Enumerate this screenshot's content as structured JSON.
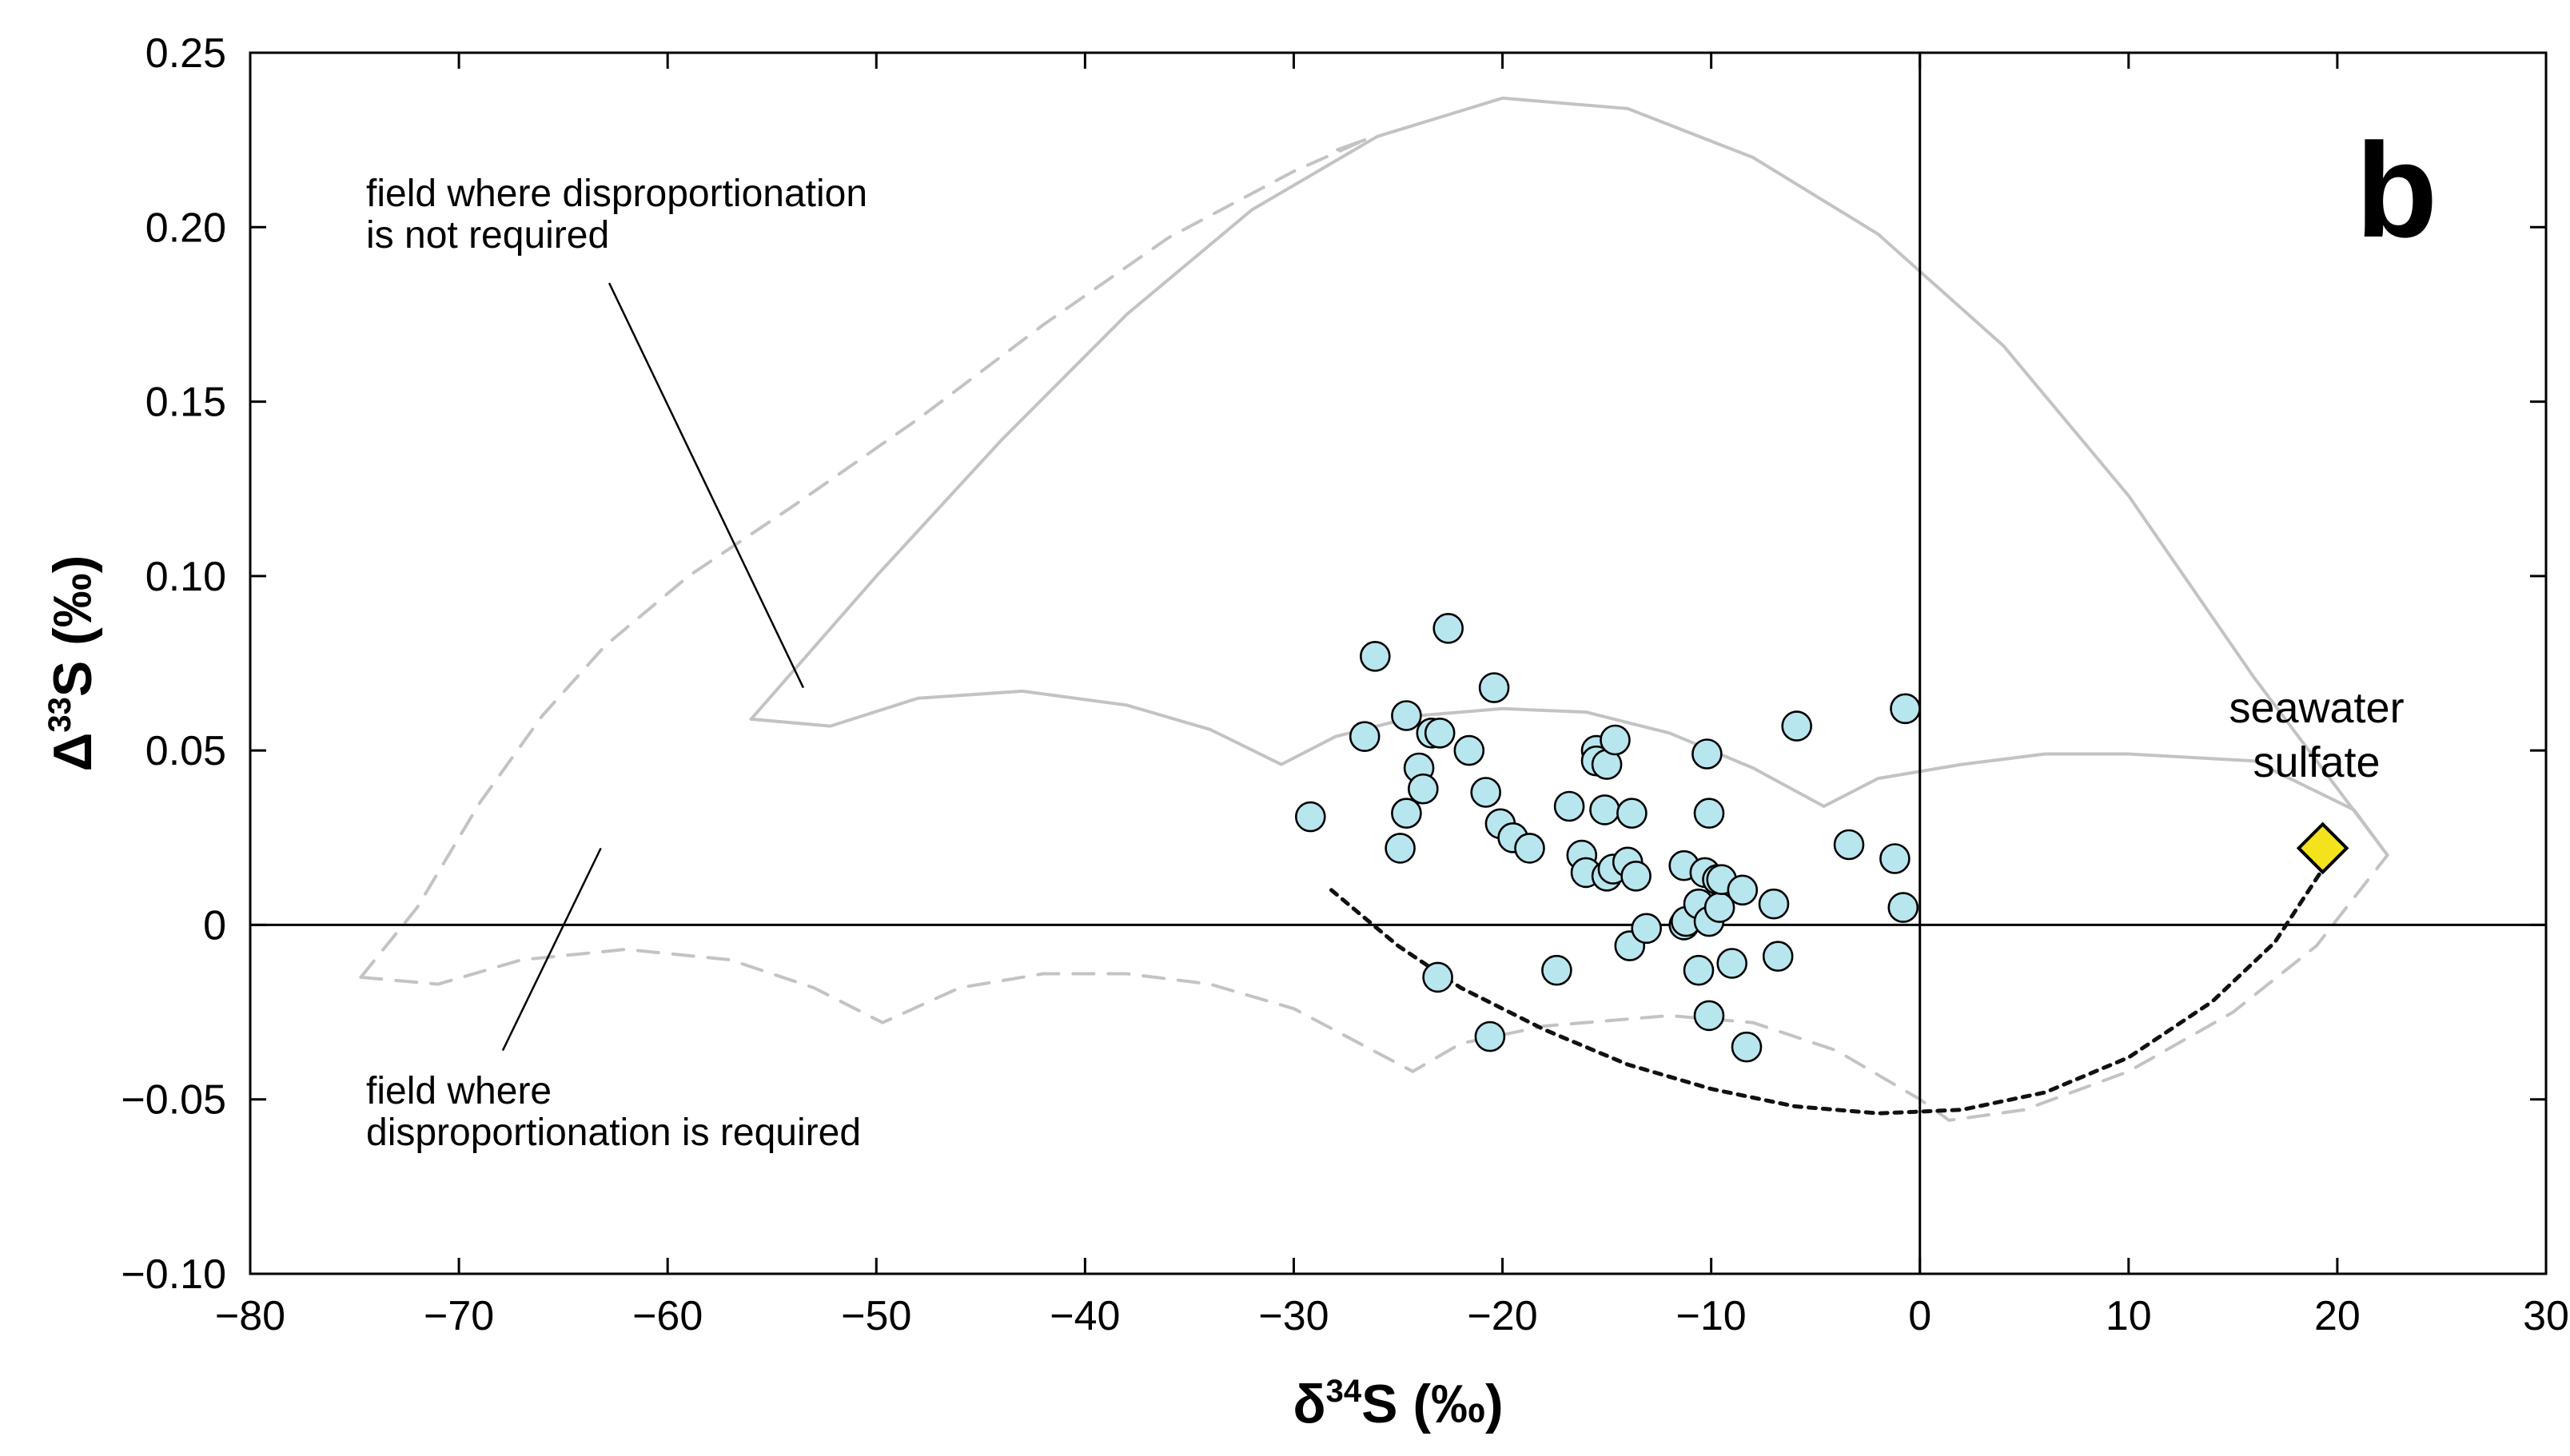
{
  "chart_data": {
    "type": "scatter",
    "panel_label": "b",
    "xlabel": {
      "main": "δ",
      "sup": "34",
      "rest": "S (‰)"
    },
    "ylabel": {
      "main": "Δ",
      "sup": "33",
      "rest": "S (‰)"
    },
    "xlim": [
      -80,
      30
    ],
    "ylim": [
      -0.1,
      0.25
    ],
    "x_ticks": [
      -80,
      -70,
      -60,
      -50,
      -40,
      -30,
      -20,
      -10,
      0,
      10,
      20,
      30
    ],
    "x_tick_labels": [
      "−80",
      "−70",
      "−60",
      "−50",
      "−40",
      "−30",
      "−20",
      "−10",
      "0",
      "10",
      "20",
      "30"
    ],
    "y_ticks": [
      -0.1,
      -0.05,
      0,
      0.05,
      0.1,
      0.15,
      0.2,
      0.25
    ],
    "y_tick_labels": [
      "−0.10",
      "−0.05",
      "0",
      "0.05",
      "0.10",
      "0.15",
      "0.20",
      "0.25"
    ],
    "reference_lines": {
      "x": 0,
      "y": 0
    },
    "annotations": [
      {
        "id": "not-required",
        "lines": [
          "field where disproportionation",
          "is not required"
        ],
        "leader": [
          [
            -62.8,
            0.184
          ],
          [
            -53.5,
            0.068
          ]
        ]
      },
      {
        "id": "required",
        "lines": [
          "field where",
          "disproportionation is required"
        ],
        "leader": [
          [
            -67.9,
            -0.036
          ],
          [
            -63.2,
            0.022
          ]
        ]
      },
      {
        "id": "seawater",
        "lines": [
          "seawater",
          "sulfate"
        ]
      }
    ],
    "series": [
      {
        "name": "samples",
        "type": "scatter",
        "marker": "circle",
        "color": "#b8e6ee",
        "points": [
          [
            -29.2,
            0.031
          ],
          [
            -26.6,
            0.054
          ],
          [
            -26.1,
            0.077
          ],
          [
            -24.9,
            0.022
          ],
          [
            -24.6,
            0.06
          ],
          [
            -24.6,
            0.032
          ],
          [
            -24.0,
            0.045
          ],
          [
            -23.8,
            0.039
          ],
          [
            -23.4,
            0.055
          ],
          [
            -23.0,
            0.055
          ],
          [
            -23.1,
            -0.015
          ],
          [
            -22.6,
            0.085
          ],
          [
            -21.6,
            0.05
          ],
          [
            -20.8,
            0.038
          ],
          [
            -20.4,
            0.068
          ],
          [
            -20.1,
            0.029
          ],
          [
            -19.5,
            0.025
          ],
          [
            -20.6,
            -0.032
          ],
          [
            -18.7,
            0.022
          ],
          [
            -17.4,
            -0.013
          ],
          [
            -16.8,
            0.034
          ],
          [
            -16.2,
            0.02
          ],
          [
            -16.0,
            0.015
          ],
          [
            -15.5,
            0.05
          ],
          [
            -15.5,
            0.047
          ],
          [
            -15.0,
            0.046
          ],
          [
            -15.1,
            0.033
          ],
          [
            -15.0,
            0.014
          ],
          [
            -14.6,
            0.053
          ],
          [
            -14.7,
            0.016
          ],
          [
            -14.0,
            0.018
          ],
          [
            -13.8,
            0.032
          ],
          [
            -13.6,
            0.014
          ],
          [
            -13.9,
            -0.006
          ],
          [
            -13.1,
            -0.001
          ],
          [
            -11.3,
            0.017
          ],
          [
            -11.3,
            0.0
          ],
          [
            -11.2,
            0.001
          ],
          [
            -10.6,
            -0.013
          ],
          [
            -10.6,
            0.006
          ],
          [
            -10.3,
            0.015
          ],
          [
            -10.2,
            0.049
          ],
          [
            -10.1,
            0.032
          ],
          [
            -10.1,
            0.001
          ],
          [
            -10.1,
            -0.026
          ],
          [
            -9.7,
            0.013
          ],
          [
            -9.6,
            0.005
          ],
          [
            -9.5,
            0.013
          ],
          [
            -9.0,
            -0.011
          ],
          [
            -8.5,
            0.01
          ],
          [
            -8.3,
            -0.035
          ],
          [
            -7.0,
            0.006
          ],
          [
            -6.8,
            -0.009
          ],
          [
            -5.9,
            0.057
          ],
          [
            -3.4,
            0.023
          ],
          [
            -1.2,
            0.019
          ],
          [
            -0.8,
            0.005
          ],
          [
            -0.7,
            0.062
          ]
        ]
      },
      {
        "name": "seawater sulfate",
        "type": "scatter",
        "marker": "diamond",
        "color": "#f4e21c",
        "points": [
          [
            19.3,
            0.022
          ]
        ]
      },
      {
        "name": "upper field boundary",
        "type": "line",
        "style": "solid",
        "color": "#c3c3c3",
        "points": [
          [
            -56,
            0.059
          ],
          [
            -50,
            0.1
          ],
          [
            -44,
            0.139
          ],
          [
            -38,
            0.175
          ],
          [
            -32,
            0.205
          ],
          [
            -26,
            0.226
          ],
          [
            -20,
            0.237
          ],
          [
            -14,
            0.234
          ],
          [
            -8,
            0.22
          ],
          [
            -2,
            0.198
          ],
          [
            4,
            0.166
          ],
          [
            10,
            0.123
          ],
          [
            16,
            0.071
          ],
          [
            22.4,
            0.02
          ],
          [
            20.8,
            0.033
          ],
          [
            16,
            0.047
          ],
          [
            10,
            0.049
          ],
          [
            6,
            0.049
          ],
          [
            2,
            0.046
          ],
          [
            -2,
            0.042
          ],
          [
            -4.6,
            0.034
          ],
          [
            -8,
            0.045
          ],
          [
            -12,
            0.055
          ],
          [
            -16,
            0.061
          ],
          [
            -20,
            0.062
          ],
          [
            -24,
            0.06
          ],
          [
            -28,
            0.054
          ],
          [
            -30.6,
            0.046
          ],
          [
            -34,
            0.056
          ],
          [
            -38,
            0.063
          ],
          [
            -43,
            0.067
          ],
          [
            -48,
            0.065
          ],
          [
            -52.2,
            0.057
          ],
          [
            -56,
            0.059
          ]
        ]
      },
      {
        "name": "lower field boundary",
        "type": "line",
        "style": "dashed",
        "color": "#c3c3c3",
        "points": [
          [
            -74.7,
            -0.015
          ],
          [
            -72,
            0.005
          ],
          [
            -69,
            0.035
          ],
          [
            -66,
            0.06
          ],
          [
            -63,
            0.08
          ],
          [
            -59,
            0.1
          ],
          [
            -54,
            0.12
          ],
          [
            -48,
            0.145
          ],
          [
            -42,
            0.172
          ],
          [
            -36,
            0.197
          ],
          [
            -30,
            0.216
          ],
          [
            -26.6,
            0.225
          ],
          [
            -26.6,
            0.225
          ],
          [
            -28,
            0.222
          ],
          [
            -26.6,
            0.225
          ]
        ]
      },
      {
        "name": "lower field base",
        "type": "line",
        "style": "dashed",
        "color": "#c3c3c3",
        "points": [
          [
            -74.7,
            -0.015
          ],
          [
            -71,
            -0.017
          ],
          [
            -67,
            -0.01
          ],
          [
            -62,
            -0.007
          ],
          [
            -57,
            -0.01
          ],
          [
            -53,
            -0.018
          ],
          [
            -49.7,
            -0.028
          ],
          [
            -46,
            -0.018
          ],
          [
            -42,
            -0.014
          ],
          [
            -38,
            -0.014
          ],
          [
            -34,
            -0.017
          ],
          [
            -30,
            -0.024
          ],
          [
            -24.3,
            -0.042
          ],
          [
            -22,
            -0.034
          ],
          [
            -18,
            -0.029
          ],
          [
            -12,
            -0.026
          ],
          [
            -8,
            -0.028
          ],
          [
            -4,
            -0.036
          ],
          [
            0,
            -0.05
          ],
          [
            1.4,
            -0.056
          ],
          [
            5,
            -0.053
          ],
          [
            10,
            -0.042
          ],
          [
            15,
            -0.025
          ],
          [
            19,
            -0.006
          ],
          [
            22.4,
            0.02
          ]
        ]
      },
      {
        "name": "mixing curve",
        "type": "line",
        "style": "dotted",
        "color": "#111111",
        "points": [
          [
            -28.2,
            0.01
          ],
          [
            -25,
            -0.006
          ],
          [
            -22,
            -0.018
          ],
          [
            -18,
            -0.03
          ],
          [
            -14,
            -0.04
          ],
          [
            -10,
            -0.047
          ],
          [
            -6,
            -0.052
          ],
          [
            -2,
            -0.054
          ],
          [
            2,
            -0.053
          ],
          [
            6,
            -0.048
          ],
          [
            10,
            -0.038
          ],
          [
            14,
            -0.022
          ],
          [
            17,
            -0.005
          ],
          [
            19.3,
            0.016
          ]
        ]
      }
    ]
  }
}
